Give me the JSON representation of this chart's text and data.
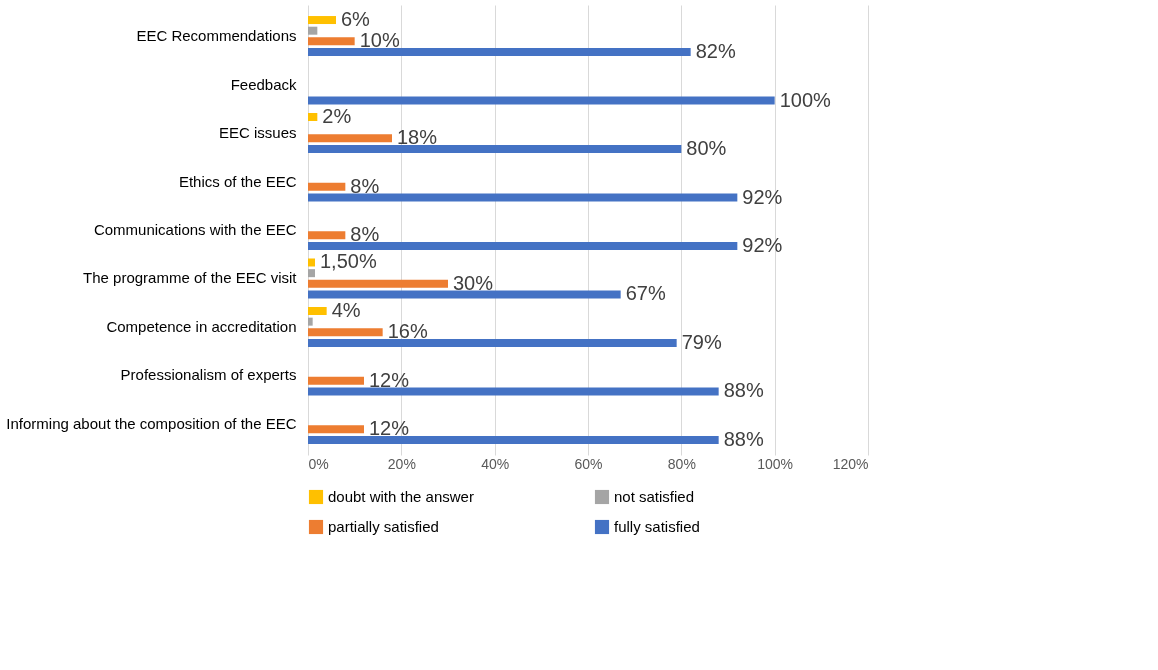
{
  "chart_data": {
    "type": "bar",
    "orientation": "horizontal",
    "categories": [
      "EEC Recommendations",
      "Feedback",
      "EEC issues",
      "Ethics of the EEC",
      "Communications with the EEC",
      "The programme of the EEC visit",
      "Competence in accreditation",
      "Professionalism of experts",
      "Informing about the composition of the EEC"
    ],
    "series": [
      {
        "name": "doubt with the answer",
        "color": "#ffc000",
        "values": [
          6,
          null,
          2,
          null,
          null,
          1.5,
          4,
          null,
          null
        ],
        "value_labels": [
          "6%",
          null,
          "2%",
          null,
          null,
          "1,50%",
          "4%",
          null,
          null
        ]
      },
      {
        "name": "not satisfied",
        "color": "#a5a5a5",
        "values": [
          2,
          null,
          null,
          null,
          null,
          1.5,
          1,
          null,
          null
        ]
      },
      {
        "name": "partially satisfied",
        "color": "#ed7d31",
        "values": [
          10,
          null,
          18,
          8,
          8,
          30,
          16,
          12,
          12
        ],
        "value_labels": [
          "10%",
          null,
          "18%",
          "8%",
          "8%",
          "30%",
          "16%",
          "12%",
          "12%"
        ]
      },
      {
        "name": "fully satisfied",
        "color": "#4472c4",
        "values": [
          82,
          100,
          80,
          92,
          92,
          67,
          79,
          88,
          88
        ],
        "value_labels": [
          "82%",
          "100%",
          "80%",
          "92%",
          "92%",
          "67%",
          "79%",
          "88%",
          "88%"
        ]
      }
    ],
    "xlim": [
      0,
      120
    ],
    "xticks": [
      {
        "value": 0,
        "label": "0%"
      },
      {
        "value": 20,
        "label": "20%"
      },
      {
        "value": 40,
        "label": "40%"
      },
      {
        "value": 60,
        "label": "60%"
      },
      {
        "value": 80,
        "label": "80%"
      },
      {
        "value": 100,
        "label": "100%"
      },
      {
        "value": 120,
        "label": "120%"
      }
    ],
    "grid": "x",
    "legend": "bottom"
  }
}
